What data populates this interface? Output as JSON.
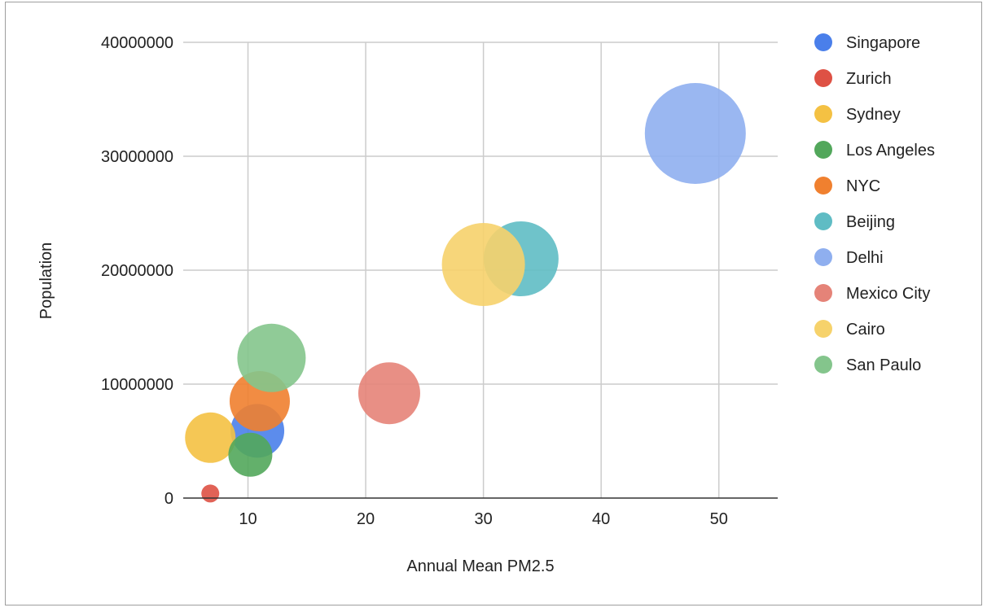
{
  "chart_data": {
    "type": "bubble",
    "xlabel": "Annual Mean PM2.5",
    "ylabel": "Population",
    "xlim": [
      4.5,
      55
    ],
    "ylim": [
      0,
      40000000
    ],
    "x_ticks": [
      10,
      20,
      30,
      40,
      50
    ],
    "y_ticks": [
      0,
      10000000,
      20000000,
      30000000,
      40000000
    ],
    "x_tick_labels": [
      "10",
      "20",
      "30",
      "40",
      "50"
    ],
    "y_tick_labels": [
      "0",
      "10000000",
      "20000000",
      "30000000",
      "40000000"
    ],
    "grid": true,
    "legend_position": "right",
    "series": [
      {
        "name": "Singapore",
        "x": 10.8,
        "y": 5900000,
        "size": 33,
        "color": "#4a7fea"
      },
      {
        "name": "Zurich",
        "x": 6.8,
        "y": 400000,
        "size": 11,
        "color": "#de5144"
      },
      {
        "name": "Sydney",
        "x": 6.8,
        "y": 5300000,
        "size": 31,
        "color": "#f4c143"
      },
      {
        "name": "Los Angeles",
        "x": 10.2,
        "y": 3800000,
        "size": 27,
        "color": "#52a75b"
      },
      {
        "name": "NYC",
        "x": 11.0,
        "y": 8500000,
        "size": 37,
        "color": "#f0802f"
      },
      {
        "name": "Beijing",
        "x": 33.2,
        "y": 21000000,
        "size": 46,
        "color": "#5fbcc4"
      },
      {
        "name": "Delhi",
        "x": 48.0,
        "y": 32000000,
        "size": 62,
        "color": "#8fafef"
      },
      {
        "name": "Mexico City",
        "x": 22.0,
        "y": 9200000,
        "size": 38,
        "color": "#e58378"
      },
      {
        "name": "Cairo",
        "x": 30.0,
        "y": 20500000,
        "size": 51,
        "color": "#f6d26b"
      },
      {
        "name": "San Paulo",
        "x": 12.0,
        "y": 12300000,
        "size": 42,
        "color": "#84c58c"
      }
    ]
  }
}
